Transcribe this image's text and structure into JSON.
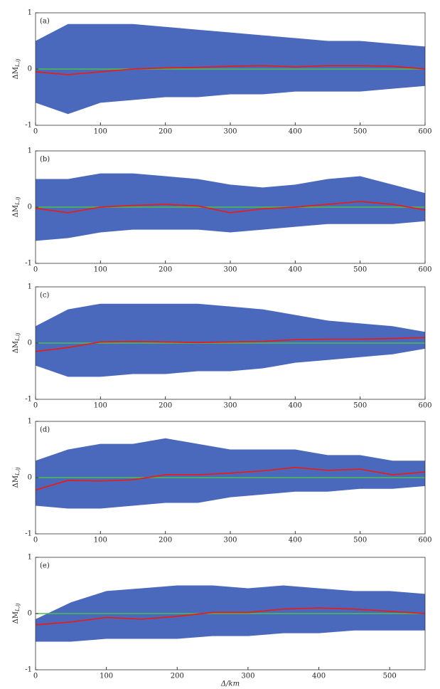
{
  "chart_data": [
    {
      "type": "band_line",
      "panel_label": "(a)",
      "ylabel": {
        "main": "ΔM",
        "sub": "L,ij"
      },
      "x": [
        0,
        50,
        100,
        150,
        200,
        250,
        300,
        350,
        400,
        450,
        500,
        550,
        600
      ],
      "band_high": [
        0.5,
        0.8,
        0.8,
        0.8,
        0.75,
        0.7,
        0.65,
        0.6,
        0.55,
        0.5,
        0.5,
        0.45,
        0.4
      ],
      "band_low": [
        -0.6,
        -0.8,
        -0.6,
        -0.55,
        -0.5,
        -0.5,
        -0.45,
        -0.45,
        -0.4,
        -0.4,
        -0.4,
        -0.35,
        -0.3
      ],
      "line": [
        -0.05,
        -0.1,
        -0.05,
        0,
        0.02,
        0.03,
        0.05,
        0.06,
        0.04,
        0.06,
        0.06,
        0.05,
        0.0
      ],
      "band_color": "#2b4fb0",
      "line_color": "#e02020",
      "ref_color": "#4cc04c",
      "ref": 0,
      "xlim": [
        0,
        600
      ],
      "xticks": [
        0,
        100,
        200,
        300,
        400,
        500,
        600
      ],
      "ylim": [
        -1,
        1
      ],
      "yticks": [
        -1,
        0,
        1
      ]
    },
    {
      "type": "band_line",
      "panel_label": "(b)",
      "ylabel": {
        "main": "ΔM",
        "sub": "L,ij"
      },
      "x": [
        0,
        50,
        100,
        150,
        200,
        250,
        300,
        350,
        400,
        450,
        500,
        550,
        600
      ],
      "band_high": [
        0.5,
        0.5,
        0.6,
        0.6,
        0.55,
        0.5,
        0.4,
        0.35,
        0.4,
        0.5,
        0.55,
        0.4,
        0.25
      ],
      "band_low": [
        -0.6,
        -0.55,
        -0.45,
        -0.4,
        -0.4,
        -0.4,
        -0.45,
        -0.4,
        -0.35,
        -0.3,
        -0.3,
        -0.3,
        -0.25
      ],
      "line": [
        -0.02,
        -0.1,
        0,
        0.03,
        0.05,
        0.02,
        -0.1,
        -0.03,
        0,
        0.05,
        0.1,
        0.05,
        -0.05
      ],
      "band_color": "#2b4fb0",
      "line_color": "#e02020",
      "ref_color": "#4cc04c",
      "ref": 0,
      "xlim": [
        0,
        600
      ],
      "xticks": [
        0,
        100,
        200,
        300,
        400,
        500,
        600
      ],
      "ylim": [
        -1,
        1
      ],
      "yticks": [
        -1,
        0,
        1
      ]
    },
    {
      "type": "band_line",
      "panel_label": "(c)",
      "ylabel": {
        "main": "ΔM",
        "sub": "L,ij"
      },
      "x": [
        0,
        50,
        100,
        150,
        200,
        250,
        300,
        350,
        400,
        450,
        500,
        550,
        600
      ],
      "band_high": [
        0.3,
        0.6,
        0.7,
        0.7,
        0.7,
        0.7,
        0.65,
        0.6,
        0.5,
        0.4,
        0.35,
        0.3,
        0.2
      ],
      "band_low": [
        -0.4,
        -0.6,
        -0.6,
        -0.55,
        -0.55,
        -0.5,
        -0.5,
        -0.45,
        -0.35,
        -0.3,
        -0.25,
        -0.2,
        -0.1
      ],
      "line": [
        -0.15,
        -0.08,
        0.02,
        0.03,
        0.02,
        0.01,
        0.02,
        0.03,
        0.06,
        0.07,
        0.07,
        0.08,
        0.1
      ],
      "band_color": "#2b4fb0",
      "line_color": "#e02020",
      "ref_color": "#4cc04c",
      "ref": 0,
      "xlim": [
        0,
        600
      ],
      "xticks": [
        0,
        100,
        200,
        300,
        400,
        500,
        600
      ],
      "ylim": [
        -1,
        1
      ],
      "yticks": [
        -1,
        0,
        1
      ]
    },
    {
      "type": "band_line",
      "panel_label": "(d)",
      "ylabel": {
        "main": "ΔM",
        "sub": "L,ij"
      },
      "x": [
        0,
        50,
        100,
        150,
        200,
        250,
        300,
        350,
        400,
        450,
        500,
        550,
        600
      ],
      "band_high": [
        0.3,
        0.5,
        0.6,
        0.6,
        0.7,
        0.6,
        0.5,
        0.5,
        0.5,
        0.4,
        0.4,
        0.3,
        0.3
      ],
      "band_low": [
        -0.5,
        -0.55,
        -0.55,
        -0.5,
        -0.45,
        -0.45,
        -0.35,
        -0.3,
        -0.25,
        -0.25,
        -0.2,
        -0.2,
        -0.15
      ],
      "line": [
        -0.22,
        -0.05,
        -0.06,
        -0.04,
        0.05,
        0.05,
        0.08,
        0.12,
        0.18,
        0.13,
        0.15,
        0.05,
        0.1
      ],
      "band_color": "#2b4fb0",
      "line_color": "#e02020",
      "ref_color": "#4cc04c",
      "ref": 0,
      "xlim": [
        0,
        600
      ],
      "xticks": [
        0,
        100,
        200,
        300,
        400,
        500,
        600
      ],
      "ylim": [
        -1,
        1
      ],
      "yticks": [
        -1,
        0,
        1
      ]
    },
    {
      "type": "band_line",
      "panel_label": "(e)",
      "ylabel": {
        "main": "ΔM",
        "sub": "L,ij"
      },
      "xlabel": "Δ/km",
      "x": [
        0,
        50,
        100,
        150,
        200,
        250,
        300,
        350,
        400,
        450,
        500,
        550
      ],
      "band_high": [
        -0.1,
        0.2,
        0.4,
        0.45,
        0.5,
        0.5,
        0.45,
        0.5,
        0.45,
        0.4,
        0.4,
        0.35
      ],
      "band_low": [
        -0.5,
        -0.5,
        -0.45,
        -0.45,
        -0.45,
        -0.4,
        -0.4,
        -0.35,
        -0.35,
        -0.3,
        -0.3,
        -0.3
      ],
      "line": [
        -0.2,
        -0.15,
        -0.07,
        -0.1,
        -0.05,
        0.02,
        0.02,
        0.08,
        0.1,
        0.08,
        0.04,
        0.0
      ],
      "band_color": "#2b4fb0",
      "line_color": "#e02020",
      "ref_color": "#4cc04c",
      "ref": 0,
      "xlim": [
        0,
        550
      ],
      "xticks": [
        0,
        100,
        200,
        300,
        400,
        500
      ],
      "ylim": [
        -1,
        1
      ],
      "yticks": [
        -1,
        0,
        1
      ]
    }
  ]
}
